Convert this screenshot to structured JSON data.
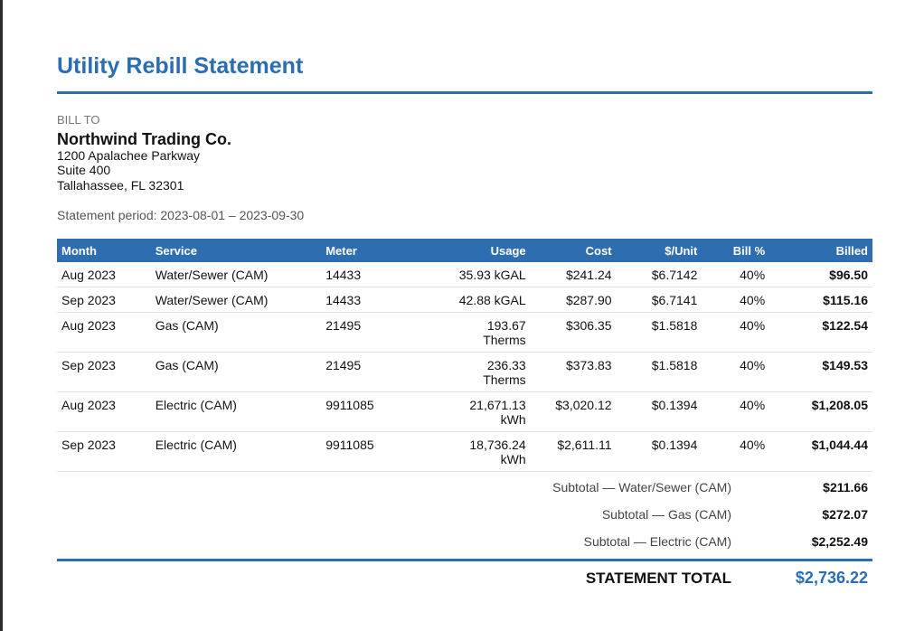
{
  "document": {
    "title": "Utility Rebill Statement",
    "bill_to_label": "BILL TO",
    "customer": {
      "name": "Northwind Trading Co.",
      "address_line1": "1200 Apalachee Parkway",
      "address_line2": "Suite 400",
      "address_line3": "Tallahassee, FL 32301"
    },
    "period": "Statement period: 2023-08-01 – 2023-09-30"
  },
  "table": {
    "headers": [
      "Month",
      "Service",
      "Meter",
      "Usage",
      "Cost",
      "$/Unit",
      "Bill %",
      "Billed"
    ],
    "rows": [
      {
        "month": "Aug 2023",
        "service": "Water/Sewer (CAM)",
        "meter": "14433",
        "usage_value": "35.93 kGAL",
        "usage_unit": "",
        "cost": "$241.24",
        "per_unit": "$6.7142",
        "bill_pct": "40%",
        "billed": "$96.50"
      },
      {
        "month": "Sep 2023",
        "service": "Water/Sewer (CAM)",
        "meter": "14433",
        "usage_value": "42.88 kGAL",
        "usage_unit": "",
        "cost": "$287.90",
        "per_unit": "$6.7141",
        "bill_pct": "40%",
        "billed": "$115.16"
      },
      {
        "month": "Aug 2023",
        "service": "Gas (CAM)",
        "meter": "21495",
        "usage_value": "193.67",
        "usage_unit": "Therms",
        "cost": "$306.35",
        "per_unit": "$1.5818",
        "bill_pct": "40%",
        "billed": "$122.54"
      },
      {
        "month": "Sep 2023",
        "service": "Gas (CAM)",
        "meter": "21495",
        "usage_value": "236.33",
        "usage_unit": "Therms",
        "cost": "$373.83",
        "per_unit": "$1.5818",
        "bill_pct": "40%",
        "billed": "$149.53"
      },
      {
        "month": "Aug 2023",
        "service": "Electric (CAM)",
        "meter": "9911085",
        "usage_value": "21,671.13",
        "usage_unit": "kWh",
        "cost": "$3,020.12",
        "per_unit": "$0.1394",
        "bill_pct": "40%",
        "billed": "$1,208.05"
      },
      {
        "month": "Sep 2023",
        "service": "Electric (CAM)",
        "meter": "9911085",
        "usage_value": "18,736.24",
        "usage_unit": "kWh",
        "cost": "$2,611.11",
        "per_unit": "$0.1394",
        "bill_pct": "40%",
        "billed": "$1,044.44"
      }
    ]
  },
  "subtotals": [
    {
      "label": "Subtotal — Water/Sewer (CAM)",
      "value": "$211.66"
    },
    {
      "label": "Subtotal — Gas (CAM)",
      "value": "$272.07"
    },
    {
      "label": "Subtotal — Electric (CAM)",
      "value": "$2,252.49"
    }
  ],
  "total": {
    "label": "STATEMENT TOTAL",
    "value": "$2,736.22"
  },
  "colors": {
    "accent": "#2e6db0",
    "title": "#2a6db5"
  }
}
